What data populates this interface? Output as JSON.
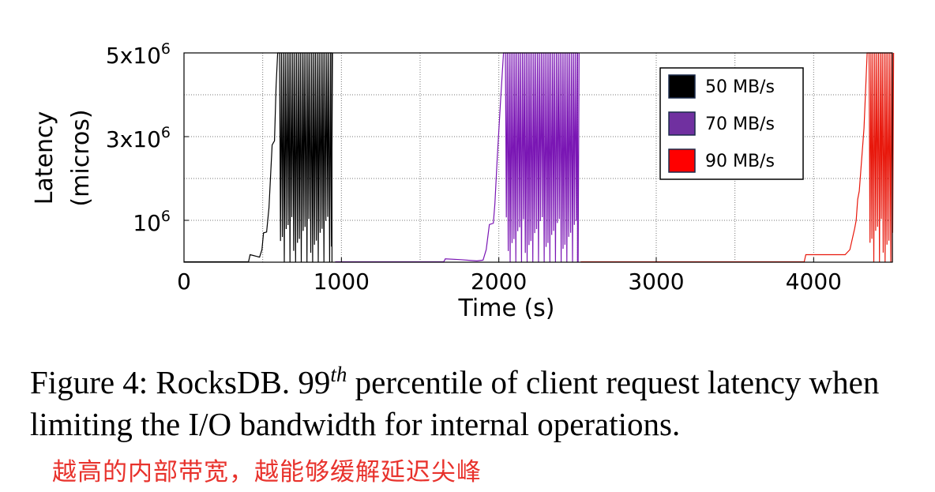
{
  "chart_data": {
    "type": "line",
    "xlabel": "Time (s)",
    "ylabel_line1": "Latency",
    "ylabel_line2": "(micros)",
    "xlim": [
      0,
      4500
    ],
    "ylim": [
      0,
      5000000
    ],
    "x_ticks": [
      {
        "value": 0,
        "label": "0"
      },
      {
        "value": 1000,
        "label": "1000"
      },
      {
        "value": 2000,
        "label": "2000"
      },
      {
        "value": 3000,
        "label": "3000"
      },
      {
        "value": 4000,
        "label": "4000"
      }
    ],
    "y_ticks": [
      {
        "value": 1000000,
        "base": "10",
        "exp": "6"
      },
      {
        "value": 3000000,
        "base": "3x10",
        "exp": "6"
      },
      {
        "value": 5000000,
        "base": "5x10",
        "exp": "6"
      }
    ],
    "grid": true,
    "legend_position": "top-right",
    "series": [
      {
        "name": "50 MB/s",
        "color": "#000000",
        "legend_fill": "#000000",
        "points": [
          [
            0,
            10000
          ],
          [
            410,
            10000
          ],
          [
            420,
            180000
          ],
          [
            440,
            160000
          ],
          [
            460,
            140000
          ],
          [
            480,
            120000
          ],
          [
            495,
            300000
          ],
          [
            505,
            700000
          ],
          [
            525,
            720000
          ],
          [
            540,
            1300000
          ],
          [
            560,
            2800000
          ],
          [
            575,
            2900000
          ],
          [
            585,
            4200000
          ],
          [
            595,
            5000000
          ],
          [
            940,
            5000000
          ]
        ]
      },
      {
        "name": "70 MB/s",
        "color": "#7a16b4",
        "legend_fill": "#7030a0",
        "points": [
          [
            960,
            10000
          ],
          [
            1650,
            10000
          ],
          [
            1660,
            80000
          ],
          [
            1760,
            60000
          ],
          [
            1860,
            30000
          ],
          [
            1900,
            50000
          ],
          [
            1920,
            300000
          ],
          [
            1940,
            900000
          ],
          [
            1965,
            930000
          ],
          [
            1975,
            1400000
          ],
          [
            1990,
            2500000
          ],
          [
            2010,
            3800000
          ],
          [
            2030,
            5000000
          ],
          [
            2500,
            5000000
          ]
        ]
      },
      {
        "name": "90 MB/s",
        "color": "#e8180c",
        "legend_fill": "#ff0000",
        "points": [
          [
            2520,
            10000
          ],
          [
            3940,
            10000
          ],
          [
            3950,
            180000
          ],
          [
            4200,
            180000
          ],
          [
            4230,
            300000
          ],
          [
            4260,
            800000
          ],
          [
            4270,
            1000000
          ],
          [
            4280,
            1500000
          ],
          [
            4290,
            1700000
          ],
          [
            4300,
            2200000
          ],
          [
            4320,
            3200000
          ],
          [
            4340,
            5000000
          ],
          [
            4500,
            5000000
          ]
        ]
      }
    ]
  },
  "caption": {
    "prefix": "Figure 4: RocksDB. 99",
    "sup": "th",
    "suffix": " percentile of client request latency when limiting the I/O bandwidth for internal operations."
  },
  "note": "越高的内部带宽，越能够缓解延迟尖峰"
}
